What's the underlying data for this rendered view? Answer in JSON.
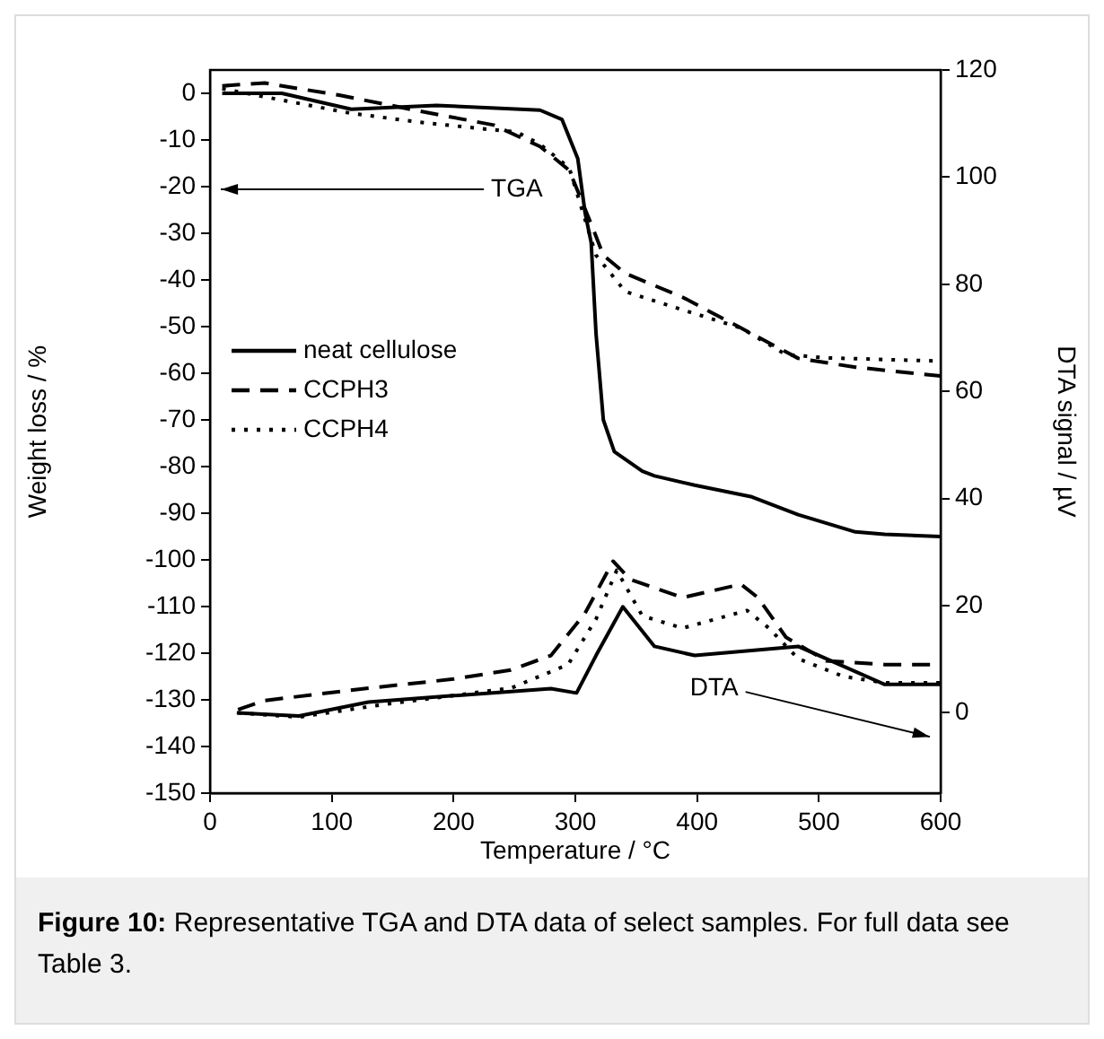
{
  "chart_data": {
    "type": "line",
    "xlabel": "Temperature / °C",
    "ylabel": "Weight loss / %",
    "y2label": "DTA signal / µV",
    "xlim": [
      0,
      600
    ],
    "xticks": [
      0,
      100,
      200,
      300,
      400,
      500,
      600
    ],
    "ylim": [
      -150,
      5
    ],
    "yticks": [
      0,
      -10,
      -20,
      -30,
      -40,
      -50,
      -60,
      -70,
      -80,
      -90,
      -100,
      -110,
      -120,
      -130,
      -140,
      -150
    ],
    "y2lim": [
      -15,
      120
    ],
    "y2ticks": [
      0,
      20,
      40,
      60,
      80,
      100,
      120
    ],
    "grid": false,
    "legend": "left",
    "marker": "none",
    "series": [
      {
        "name": "neat cellulose",
        "color": "#000000",
        "line_style": "solid",
        "x": [
          10,
          59,
          116,
          186,
          271,
          289,
          302,
          308,
          313,
          317,
          323,
          332,
          355,
          365,
          398,
          445,
          483,
          530,
          554,
          600
        ],
        "values": [
          0,
          0,
          -3.4,
          -2.6,
          -3.6,
          -5.6,
          -14,
          -25.6,
          -32,
          -51.5,
          -70,
          -76.8,
          -81,
          -82,
          -84,
          -86.5,
          -90.3,
          -94,
          -94.5,
          -95
        ]
      },
      {
        "name": "CCPH3",
        "color": "#000000",
        "line_style": "dashed",
        "x": [
          10,
          45,
          106,
          168,
          233,
          271,
          295,
          313,
          323,
          341,
          388,
          436,
          483,
          530,
          600
        ],
        "values": [
          1.6,
          2.2,
          -0.4,
          -3.6,
          -6.8,
          -11.4,
          -16.5,
          -28,
          -34.7,
          -38.6,
          -43.7,
          -50.3,
          -56.8,
          -58.7,
          -60.6
        ]
      },
      {
        "name": "CCPH4",
        "color": "#000000",
        "line_style": "dotted",
        "x": [
          10,
          116,
          176,
          224,
          252,
          271,
          295,
          317,
          341,
          388,
          436,
          473,
          506,
          600
        ],
        "values": [
          1,
          -4.3,
          -6.3,
          -7.6,
          -8.3,
          -10.9,
          -16,
          -34.7,
          -42.5,
          -46.4,
          -50.3,
          -56,
          -56.7,
          -57.4
        ]
      },
      {
        "color": "#000000",
        "line_style": "solid",
        "axis": "y2",
        "x": [
          22,
          73,
          130,
          200,
          280,
          301,
          317,
          339,
          365,
          398,
          483,
          506,
          554,
          600
        ],
        "values": [
          0,
          -0.6,
          2,
          3.2,
          4.5,
          3.7,
          10.7,
          19.8,
          12.4,
          10.7,
          12.4,
          10.1,
          5.3,
          5.3
        ]
      },
      {
        "color": "#000000",
        "line_style": "dashed",
        "axis": "y2",
        "x": [
          23,
          45,
          130,
          200,
          247,
          280,
          308,
          331,
          345,
          388,
          436,
          450,
          473,
          506,
          554,
          600
        ],
        "values": [
          0.6,
          2.3,
          4.6,
          6.3,
          8,
          10.7,
          18.6,
          28.3,
          24.9,
          21.5,
          24,
          21.5,
          14.1,
          9.7,
          9,
          9
        ]
      },
      {
        "color": "#000000",
        "line_style": "dotted",
        "axis": "y2",
        "x": [
          23,
          73,
          144,
          247,
          294,
          317,
          334,
          355,
          388,
          441,
          459,
          483,
          520,
          554,
          600
        ],
        "values": [
          0,
          -0.8,
          1.6,
          4.6,
          9,
          17.5,
          26.6,
          18.1,
          15.8,
          19.1,
          15.8,
          10.1,
          6.8,
          5.6,
          5.6
        ]
      }
    ],
    "annotations": [
      "TGA",
      "DTA",
      "Figure 10: Representative TGA and DTA data of select samples. For full data see Table 3."
    ]
  }
}
